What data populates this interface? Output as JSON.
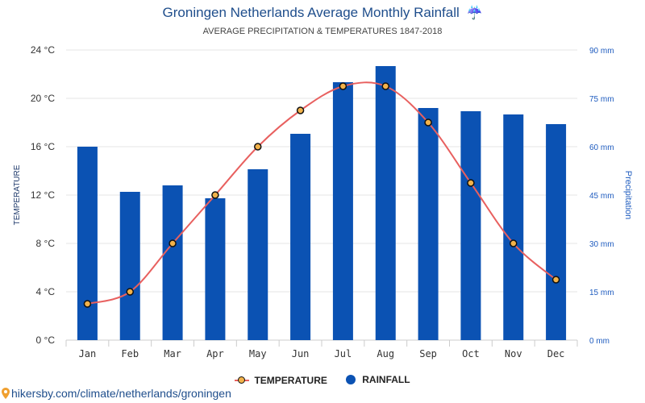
{
  "header": {
    "title": "Groningen Netherlands Average Monthly Rainfall",
    "title_icon": "umbrella-icon",
    "subtitle": "AVERAGE PRECIPITATION & TEMPERATURES 1847-2018"
  },
  "axes": {
    "left_title": "TEMPERATURE",
    "right_title": "Precipitation",
    "left_ticks": [
      "0 °C",
      "4 °C",
      "8 °C",
      "12 °C",
      "16 °C",
      "20 °C",
      "24 °C"
    ],
    "right_ticks": [
      "0 mm",
      "15 mm",
      "30 mm",
      "45 mm",
      "60 mm",
      "75 mm",
      "90 mm"
    ]
  },
  "legend": {
    "temperature": "TEMPERATURE",
    "rainfall": "RAINFALL"
  },
  "footer": {
    "source": "hikersby.com/climate/netherlands/groningen",
    "icon": "map-pin-icon"
  },
  "colors": {
    "bars": "#0b52b3",
    "line": "#e8605f",
    "marker_fill": "#f2b24a",
    "marker_stroke": "#111111",
    "grid": "#e6e6e6",
    "title": "#1f4e8c",
    "right_axis": "#1f5cbf"
  },
  "chart_data": {
    "type": "bar",
    "title": "Groningen Netherlands Average Monthly Rainfall",
    "subtitle": "AVERAGE PRECIPITATION & TEMPERATURES 1847-2018",
    "categories": [
      "Jan",
      "Feb",
      "Mar",
      "Apr",
      "May",
      "Jun",
      "Jul",
      "Aug",
      "Sep",
      "Oct",
      "Nov",
      "Dec"
    ],
    "series": [
      {
        "name": "RAINFALL",
        "type": "bar",
        "axis": "right",
        "unit": "mm",
        "values": [
          60,
          46,
          48,
          44,
          53,
          64,
          80,
          85,
          72,
          71,
          70,
          67
        ]
      },
      {
        "name": "TEMPERATURE",
        "type": "line",
        "axis": "left",
        "unit": "°C",
        "values": [
          3,
          4,
          8,
          12,
          16,
          19,
          21,
          21,
          18,
          13,
          8,
          5
        ]
      }
    ],
    "ylabel_left": "TEMPERATURE",
    "ylabel_right": "Precipitation",
    "ylim_left": [
      0,
      24
    ],
    "ylim_right": [
      0,
      90
    ],
    "grid": true,
    "legend_position": "bottom-center"
  }
}
